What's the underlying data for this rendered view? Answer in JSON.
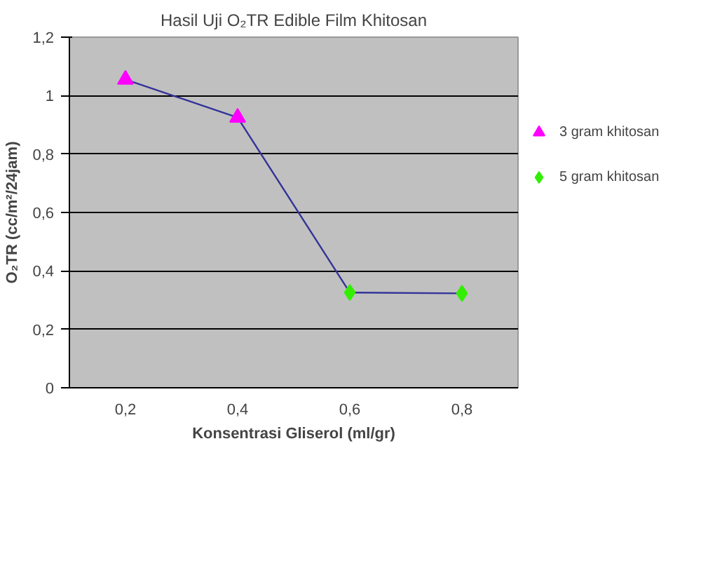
{
  "chart_data": {
    "type": "line",
    "title": "Hasil Uji O₂TR Edible Film Khitosan",
    "xlabel": "Konsentrasi Gliserol (ml/gr)",
    "ylabel": "O₂TR (cc/m²/24jam)",
    "categories": [
      "0,2",
      "0,4",
      "0,6",
      "0,8"
    ],
    "series": [
      {
        "color": "#333399",
        "values": [
          1.055,
          0.925,
          0.326,
          0.323
        ]
      },
      {
        "type": "scatter",
        "name": "3 gram khitosan",
        "color": "#ff00ff",
        "marker": "triangle",
        "values": [
          1.055,
          0.925,
          null,
          null
        ]
      },
      {
        "type": "scatter",
        "name": "5 gram khitosan",
        "color": "#33ee00",
        "marker": "diamond",
        "values": [
          null,
          null,
          0.326,
          0.323
        ]
      }
    ],
    "ylim": [
      0,
      1.2
    ],
    "yticks": [
      0,
      {
        "value": 0.2,
        "label": "0,2"
      },
      {
        "value": 0.4,
        "label": "0,4"
      },
      {
        "value": 0.6,
        "label": "0,6"
      },
      {
        "value": 0.8,
        "label": "0,8"
      },
      1,
      {
        "value": 1.2,
        "label": "1,2"
      }
    ],
    "grid": "y",
    "legend": "right"
  }
}
